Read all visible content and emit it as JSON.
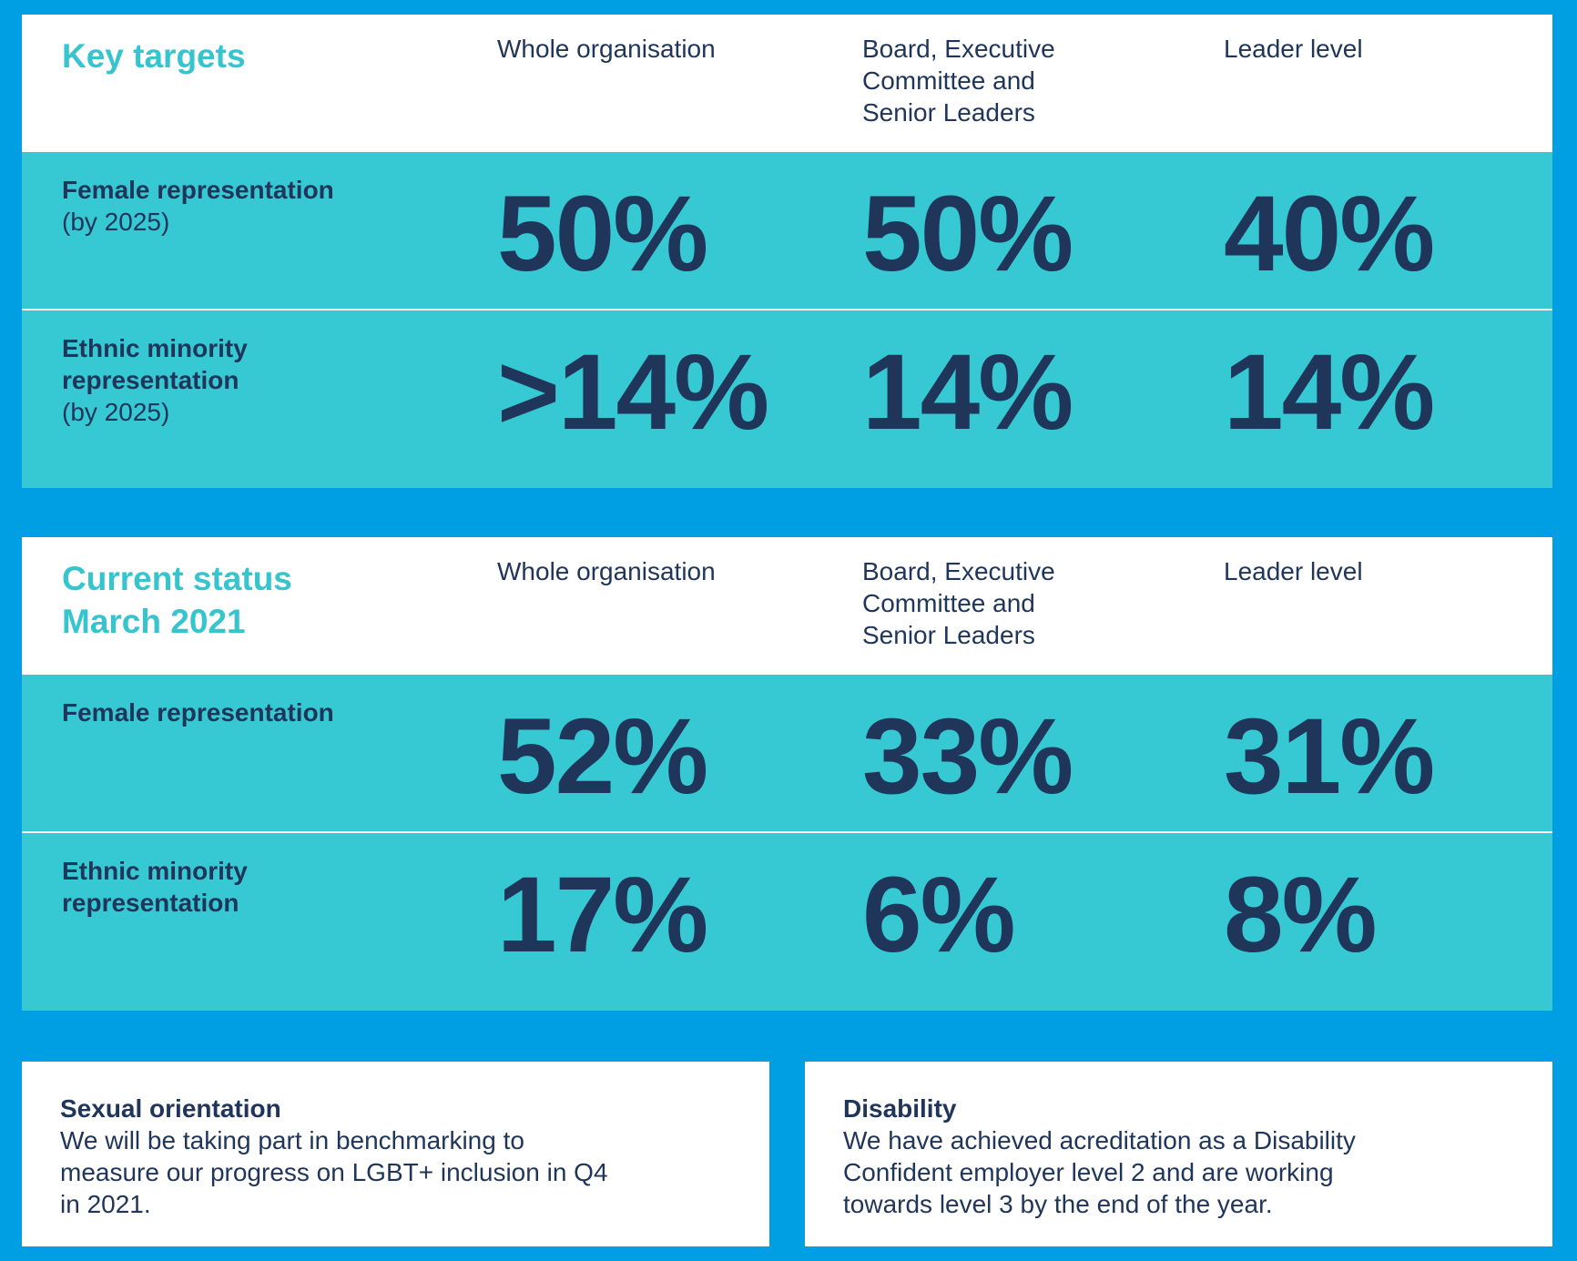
{
  "targets": {
    "title": "Key targets",
    "columns": [
      "Whole organisation",
      "Board, Executive Committee and Senior Leaders",
      "Leader level"
    ],
    "rows": [
      {
        "label": "Female representation",
        "note": "(by 2025)",
        "values": [
          "50%",
          "50%",
          "40%"
        ]
      },
      {
        "label": "Ethnic minority representation",
        "note": "(by 2025)",
        "values": [
          ">14%",
          "14%",
          "14%"
        ]
      }
    ]
  },
  "status": {
    "title": "Current status March 2021",
    "columns": [
      "Whole organisation",
      "Board, Executive Committee and Senior Leaders",
      "Leader level"
    ],
    "rows": [
      {
        "label": "Female representation",
        "values": [
          "52%",
          "33%",
          "31%"
        ]
      },
      {
        "label": "Ethnic minority representation",
        "values": [
          "17%",
          "6%",
          "8%"
        ]
      }
    ]
  },
  "sexual_orientation": {
    "title": "Sexual orientation",
    "body": "We will be taking part in benchmarking to measure our progress on LGBT+ inclusion in Q4 in 2021."
  },
  "disability": {
    "title": "Disability",
    "body": "We have achieved acreditation as a Disability Confident employer level 2 and are working towards level 3 by the end of the year."
  },
  "colors": {
    "background": "#009ee3",
    "teal": "#36c9d3",
    "title_teal": "#36c5cf",
    "navy": "#1f3559",
    "white": "#ffffff"
  }
}
